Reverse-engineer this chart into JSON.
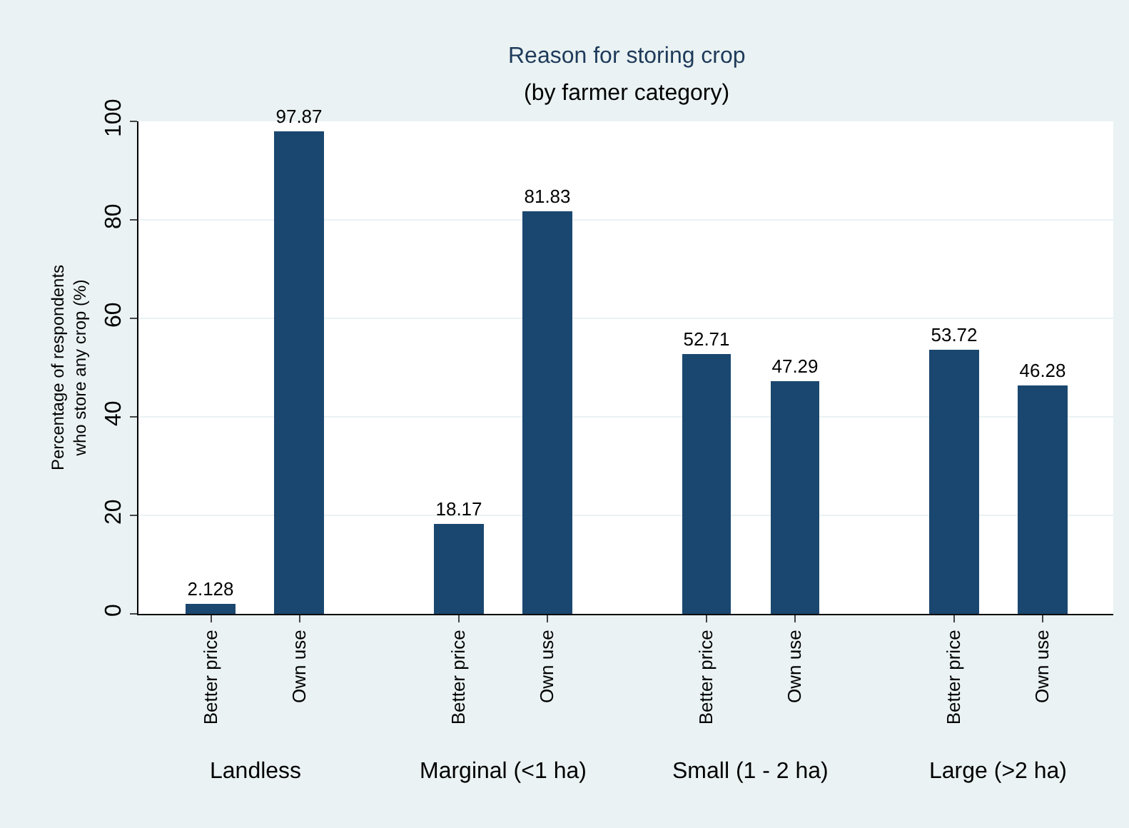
{
  "chart_data": {
    "type": "bar",
    "title": "Reason for storing crop",
    "subtitle": "(by farmer category)",
    "ylabel": "Percentage of respondents\nwho store any crop (%)",
    "categories": [
      "Better price",
      "Own use",
      "Better price",
      "Own use",
      "Better price",
      "Own use",
      "Better price",
      "Own use"
    ],
    "values": [
      2.128,
      97.87,
      18.17,
      81.83,
      52.71,
      47.29,
      53.72,
      46.28
    ],
    "color": "#1a476f",
    "ylim": [
      0,
      100
    ],
    "yticks": [
      0,
      20,
      40,
      60,
      80,
      100
    ],
    "grid": "y",
    "data_labels": true,
    "legend": false,
    "annotations": [
      "Landless",
      "Marginal (<1 ha)",
      "Small (1 - 2 ha)",
      "Large (>2 ha)"
    ]
  }
}
